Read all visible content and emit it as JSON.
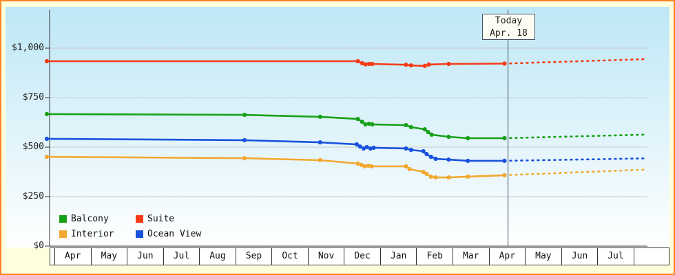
{
  "page": {
    "background": "#ffffdb",
    "border_color": "#ff8124",
    "plot_gradient_top": "#bee7f6",
    "plot_gradient_bottom": "#ffffff"
  },
  "today": {
    "title": "Today",
    "date": "Apr. 18"
  },
  "legend": {
    "items": [
      {
        "label": "Balcony",
        "color": "#18a018"
      },
      {
        "label": "Suite",
        "color": "#f63b16"
      },
      {
        "label": "Interior",
        "color": "#f2a830"
      },
      {
        "label": "Ocean View",
        "color": "#1952dd"
      }
    ]
  },
  "chart_data": {
    "type": "line",
    "title": "",
    "ylim": [
      0,
      1000
    ],
    "x_unit": "month index from first Apr (fractional = day within month)",
    "today_t": 12.55,
    "today_label": "Today Apr. 18",
    "y_ticks": [
      {
        "value": 0,
        "label": "$0"
      },
      {
        "value": 250,
        "label": "$250"
      },
      {
        "value": 500,
        "label": "$500"
      },
      {
        "value": 750,
        "label": "$750"
      },
      {
        "value": 1000,
        "label": "$1,000"
      }
    ],
    "months": [
      "Apr",
      "May",
      "Jun",
      "Jul",
      "Aug",
      "Sep",
      "Oct",
      "Nov",
      "Dec",
      "Jan",
      "Feb",
      "Mar",
      "Apr",
      "May",
      "Jun",
      "Jul"
    ],
    "series": [
      {
        "name": "Balcony",
        "color": "#18a018",
        "points": [
          [
            -0.19,
            667
          ],
          [
            5.27,
            663
          ],
          [
            7.36,
            653
          ],
          [
            8.4,
            642
          ],
          [
            8.52,
            628
          ],
          [
            8.61,
            615
          ],
          [
            8.71,
            618
          ],
          [
            8.8,
            615
          ],
          [
            9.73,
            611
          ],
          [
            9.87,
            601
          ],
          [
            10.25,
            590
          ],
          [
            10.34,
            576
          ],
          [
            10.44,
            563
          ],
          [
            10.91,
            552
          ],
          [
            11.44,
            545
          ],
          [
            12.45,
            545
          ]
        ],
        "forecast": [
          [
            12.45,
            545
          ],
          [
            16.29,
            563
          ]
        ]
      },
      {
        "name": "Suite",
        "color": "#f63b16",
        "points": [
          [
            -0.19,
            934
          ],
          [
            8.4,
            934
          ],
          [
            8.52,
            924
          ],
          [
            8.61,
            918
          ],
          [
            8.71,
            920
          ],
          [
            8.8,
            920
          ],
          [
            9.73,
            916
          ],
          [
            9.87,
            913
          ],
          [
            10.25,
            910
          ],
          [
            10.36,
            917
          ],
          [
            10.91,
            920
          ],
          [
            12.45,
            922
          ]
        ],
        "forecast": [
          [
            12.45,
            922
          ],
          [
            16.29,
            944
          ]
        ]
      },
      {
        "name": "Interior",
        "color": "#f2a830",
        "points": [
          [
            -0.19,
            451
          ],
          [
            5.27,
            444
          ],
          [
            7.36,
            434
          ],
          [
            8.4,
            417
          ],
          [
            8.5,
            410
          ],
          [
            8.59,
            403
          ],
          [
            8.69,
            406
          ],
          [
            8.78,
            403
          ],
          [
            9.73,
            403
          ],
          [
            9.83,
            389
          ],
          [
            10.21,
            375
          ],
          [
            10.3,
            365
          ],
          [
            10.42,
            351
          ],
          [
            10.55,
            347
          ],
          [
            10.91,
            347
          ],
          [
            11.44,
            351
          ],
          [
            12.45,
            358
          ]
        ],
        "forecast": [
          [
            12.45,
            358
          ],
          [
            16.29,
            386
          ]
        ]
      },
      {
        "name": "Ocean View",
        "color": "#1952dd",
        "points": [
          [
            -0.19,
            542
          ],
          [
            5.27,
            535
          ],
          [
            7.36,
            524
          ],
          [
            8.37,
            514
          ],
          [
            8.46,
            503
          ],
          [
            8.56,
            493
          ],
          [
            8.65,
            500
          ],
          [
            8.75,
            493
          ],
          [
            8.84,
            497
          ],
          [
            9.73,
            493
          ],
          [
            9.87,
            486
          ],
          [
            10.21,
            479
          ],
          [
            10.3,
            465
          ],
          [
            10.42,
            451
          ],
          [
            10.55,
            441
          ],
          [
            10.91,
            437
          ],
          [
            11.44,
            431
          ],
          [
            12.45,
            431
          ]
        ],
        "forecast": [
          [
            12.45,
            431
          ],
          [
            16.29,
            443
          ]
        ]
      }
    ]
  }
}
